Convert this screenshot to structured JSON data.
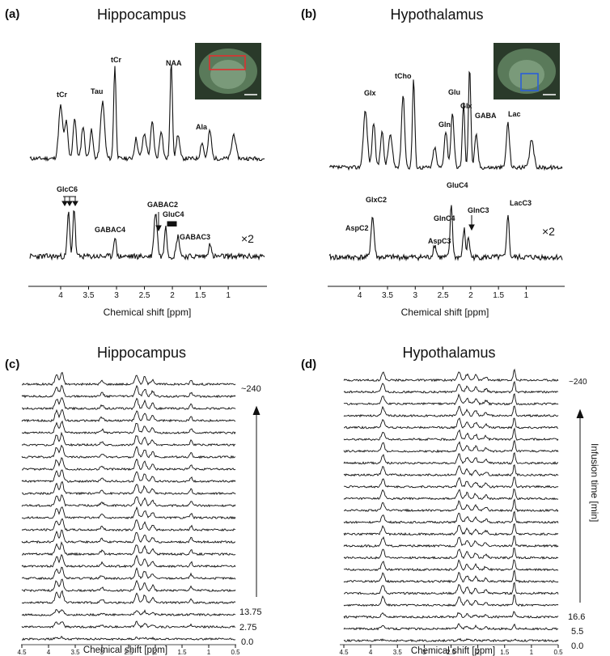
{
  "panels": {
    "a": {
      "letter": "(a)",
      "title": "Hippocampus",
      "upper_peaks": [
        "tCr",
        "Tau",
        "tCr",
        "NAA",
        "Ala"
      ],
      "lower_peaks": [
        "GlcC6",
        "GABAC4",
        "GABAC2",
        "GluC4",
        "GABAC3"
      ],
      "scale": "×2",
      "ticks": [
        "4",
        "3.5",
        "3",
        "2.5",
        "2",
        "1.5",
        "1"
      ],
      "xlabel": "Chemical shift [ppm]"
    },
    "b": {
      "letter": "(b)",
      "title": "Hypothalamus",
      "upper_peaks": [
        "Glx",
        "tCho",
        "Glu",
        "Glx",
        "Gln",
        "GABA",
        "Lac"
      ],
      "lower_peaks": [
        "GlxC2",
        "AspC2",
        "GluC4",
        "GlnC4",
        "GlnC3",
        "AspC3",
        "LacC3"
      ],
      "scale": "×2",
      "ticks": [
        "4",
        "3.5",
        "3",
        "2.5",
        "2",
        "1.5",
        "1"
      ],
      "xlabel": "Chemical shift [ppm]"
    },
    "c": {
      "letter": "(c)",
      "title": "Hippocampus",
      "time_labels": [
        "~240",
        "13.75",
        "2.75",
        "0.0"
      ],
      "ticks": [
        "4.5",
        "4",
        "3.5",
        "3",
        "2.5",
        "2",
        "1.5",
        "1",
        "0.5"
      ],
      "xlabel": "Chemical shift [ppm]"
    },
    "d": {
      "letter": "(d)",
      "title": "Hypothalamus",
      "time_labels": [
        "~240",
        "16.6",
        "5.5",
        "0.0"
      ],
      "axis_label": "Infusion time [min]",
      "ticks": [
        "4.5",
        "4",
        "3.5",
        "3",
        "2.5",
        "2",
        "1.5",
        "1",
        "0.5"
      ],
      "xlabel": "Chemical shift [ppm]"
    }
  },
  "colors": {
    "trace": "#111111",
    "roi_hippocampus": "#e03030",
    "roi_hypothalamus": "#2b5fd9",
    "mri_bg": "#2a3a2a"
  }
}
